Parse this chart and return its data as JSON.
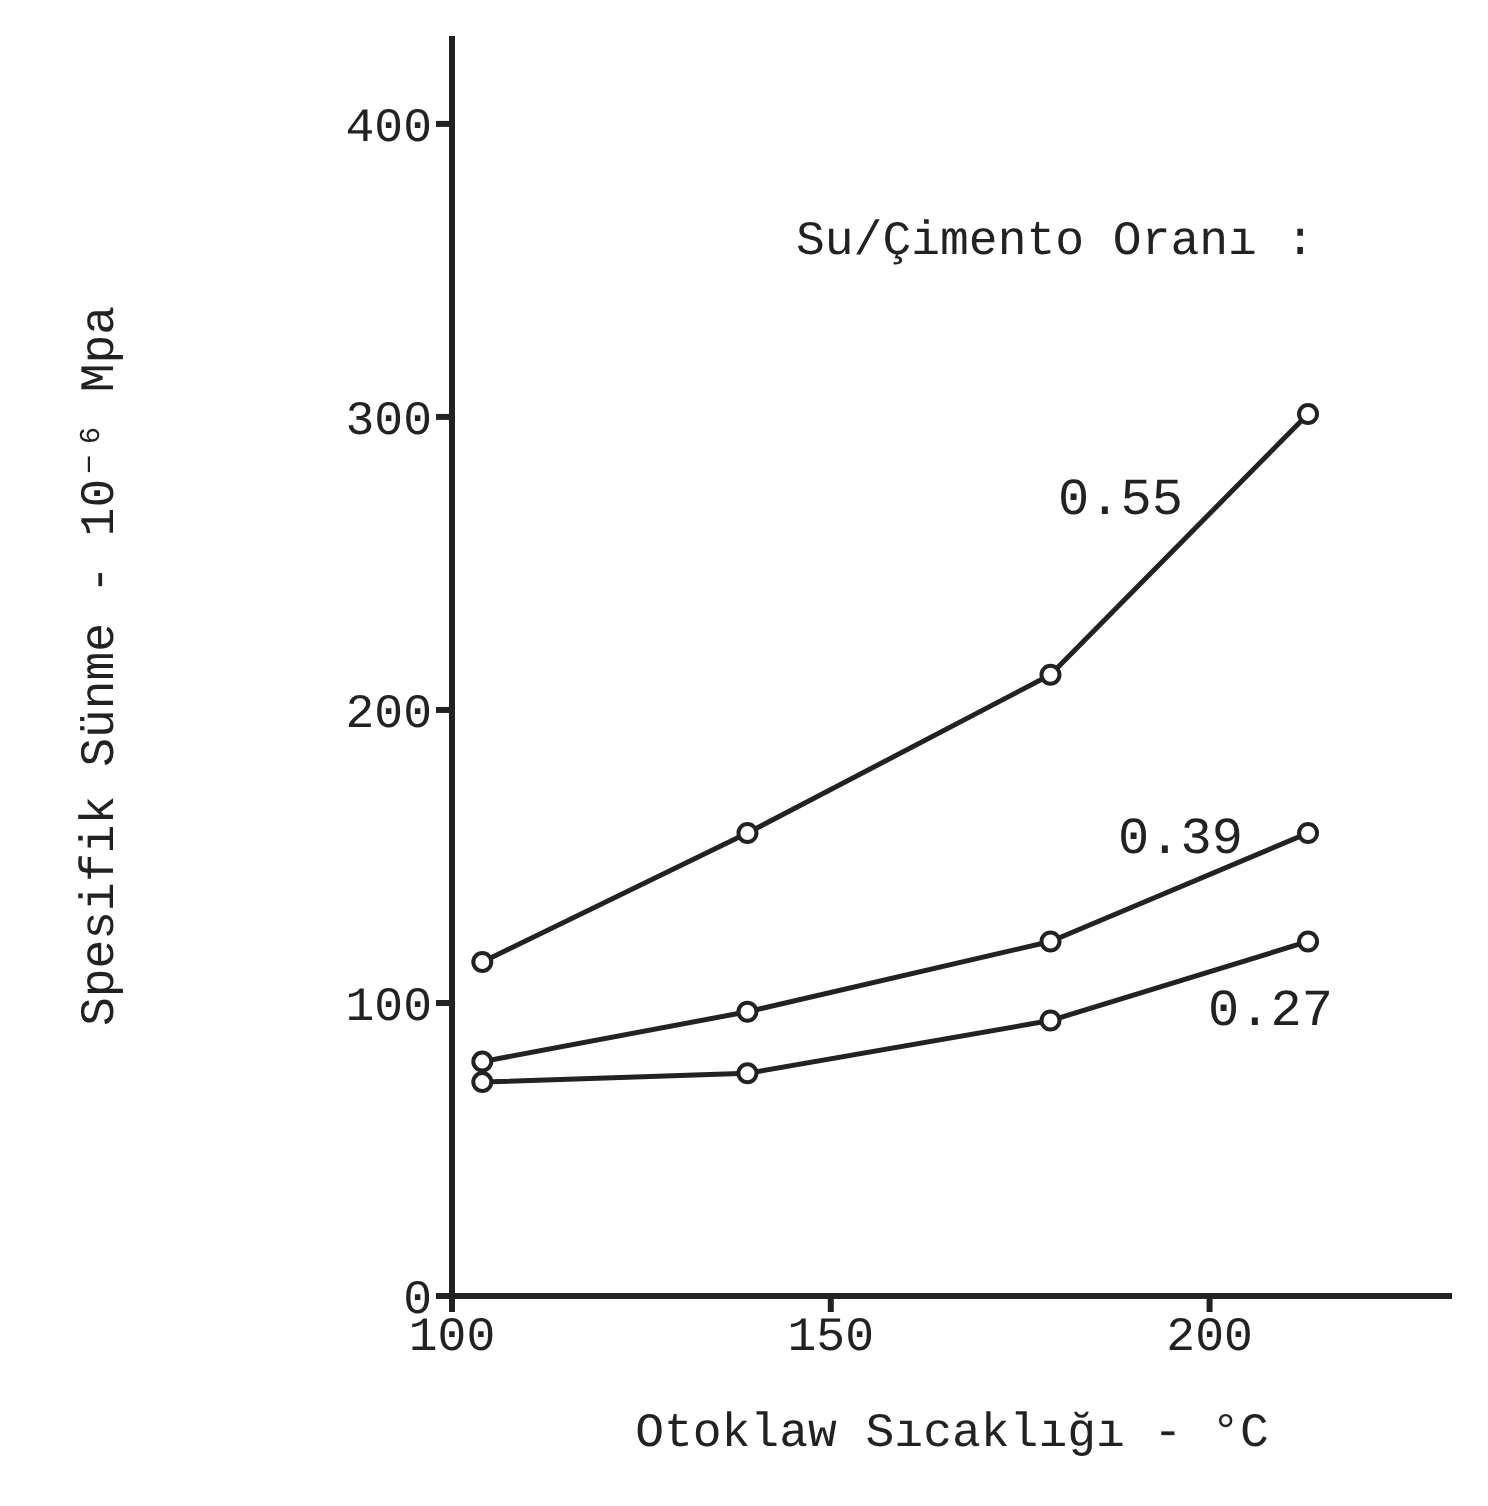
{
  "chart_data": {
    "type": "line",
    "xlabel": "Otoklaw Sıcaklığı - °C",
    "ylabel": "Spesifik Sünme - 10⁻⁶ Mpa",
    "legend_title": "Su/Çimento Oranı :",
    "x": [
      104,
      139,
      179,
      213
    ],
    "series": [
      {
        "name": "0.55",
        "color": "#222222",
        "values": [
          114,
          158,
          212,
          301
        ]
      },
      {
        "name": "0.39",
        "color": "#222222",
        "values": [
          80,
          97,
          121,
          158
        ]
      },
      {
        "name": "0.27",
        "color": "#222222",
        "values": [
          73,
          76,
          94,
          121
        ]
      }
    ],
    "xlim": [
      100,
      232
    ],
    "xticks": [
      100,
      150,
      200
    ],
    "ylim": [
      0,
      430
    ],
    "yticks": [
      0,
      100,
      200,
      300,
      400
    ],
    "grid": false,
    "marker": "circle",
    "line_style": "solid"
  }
}
